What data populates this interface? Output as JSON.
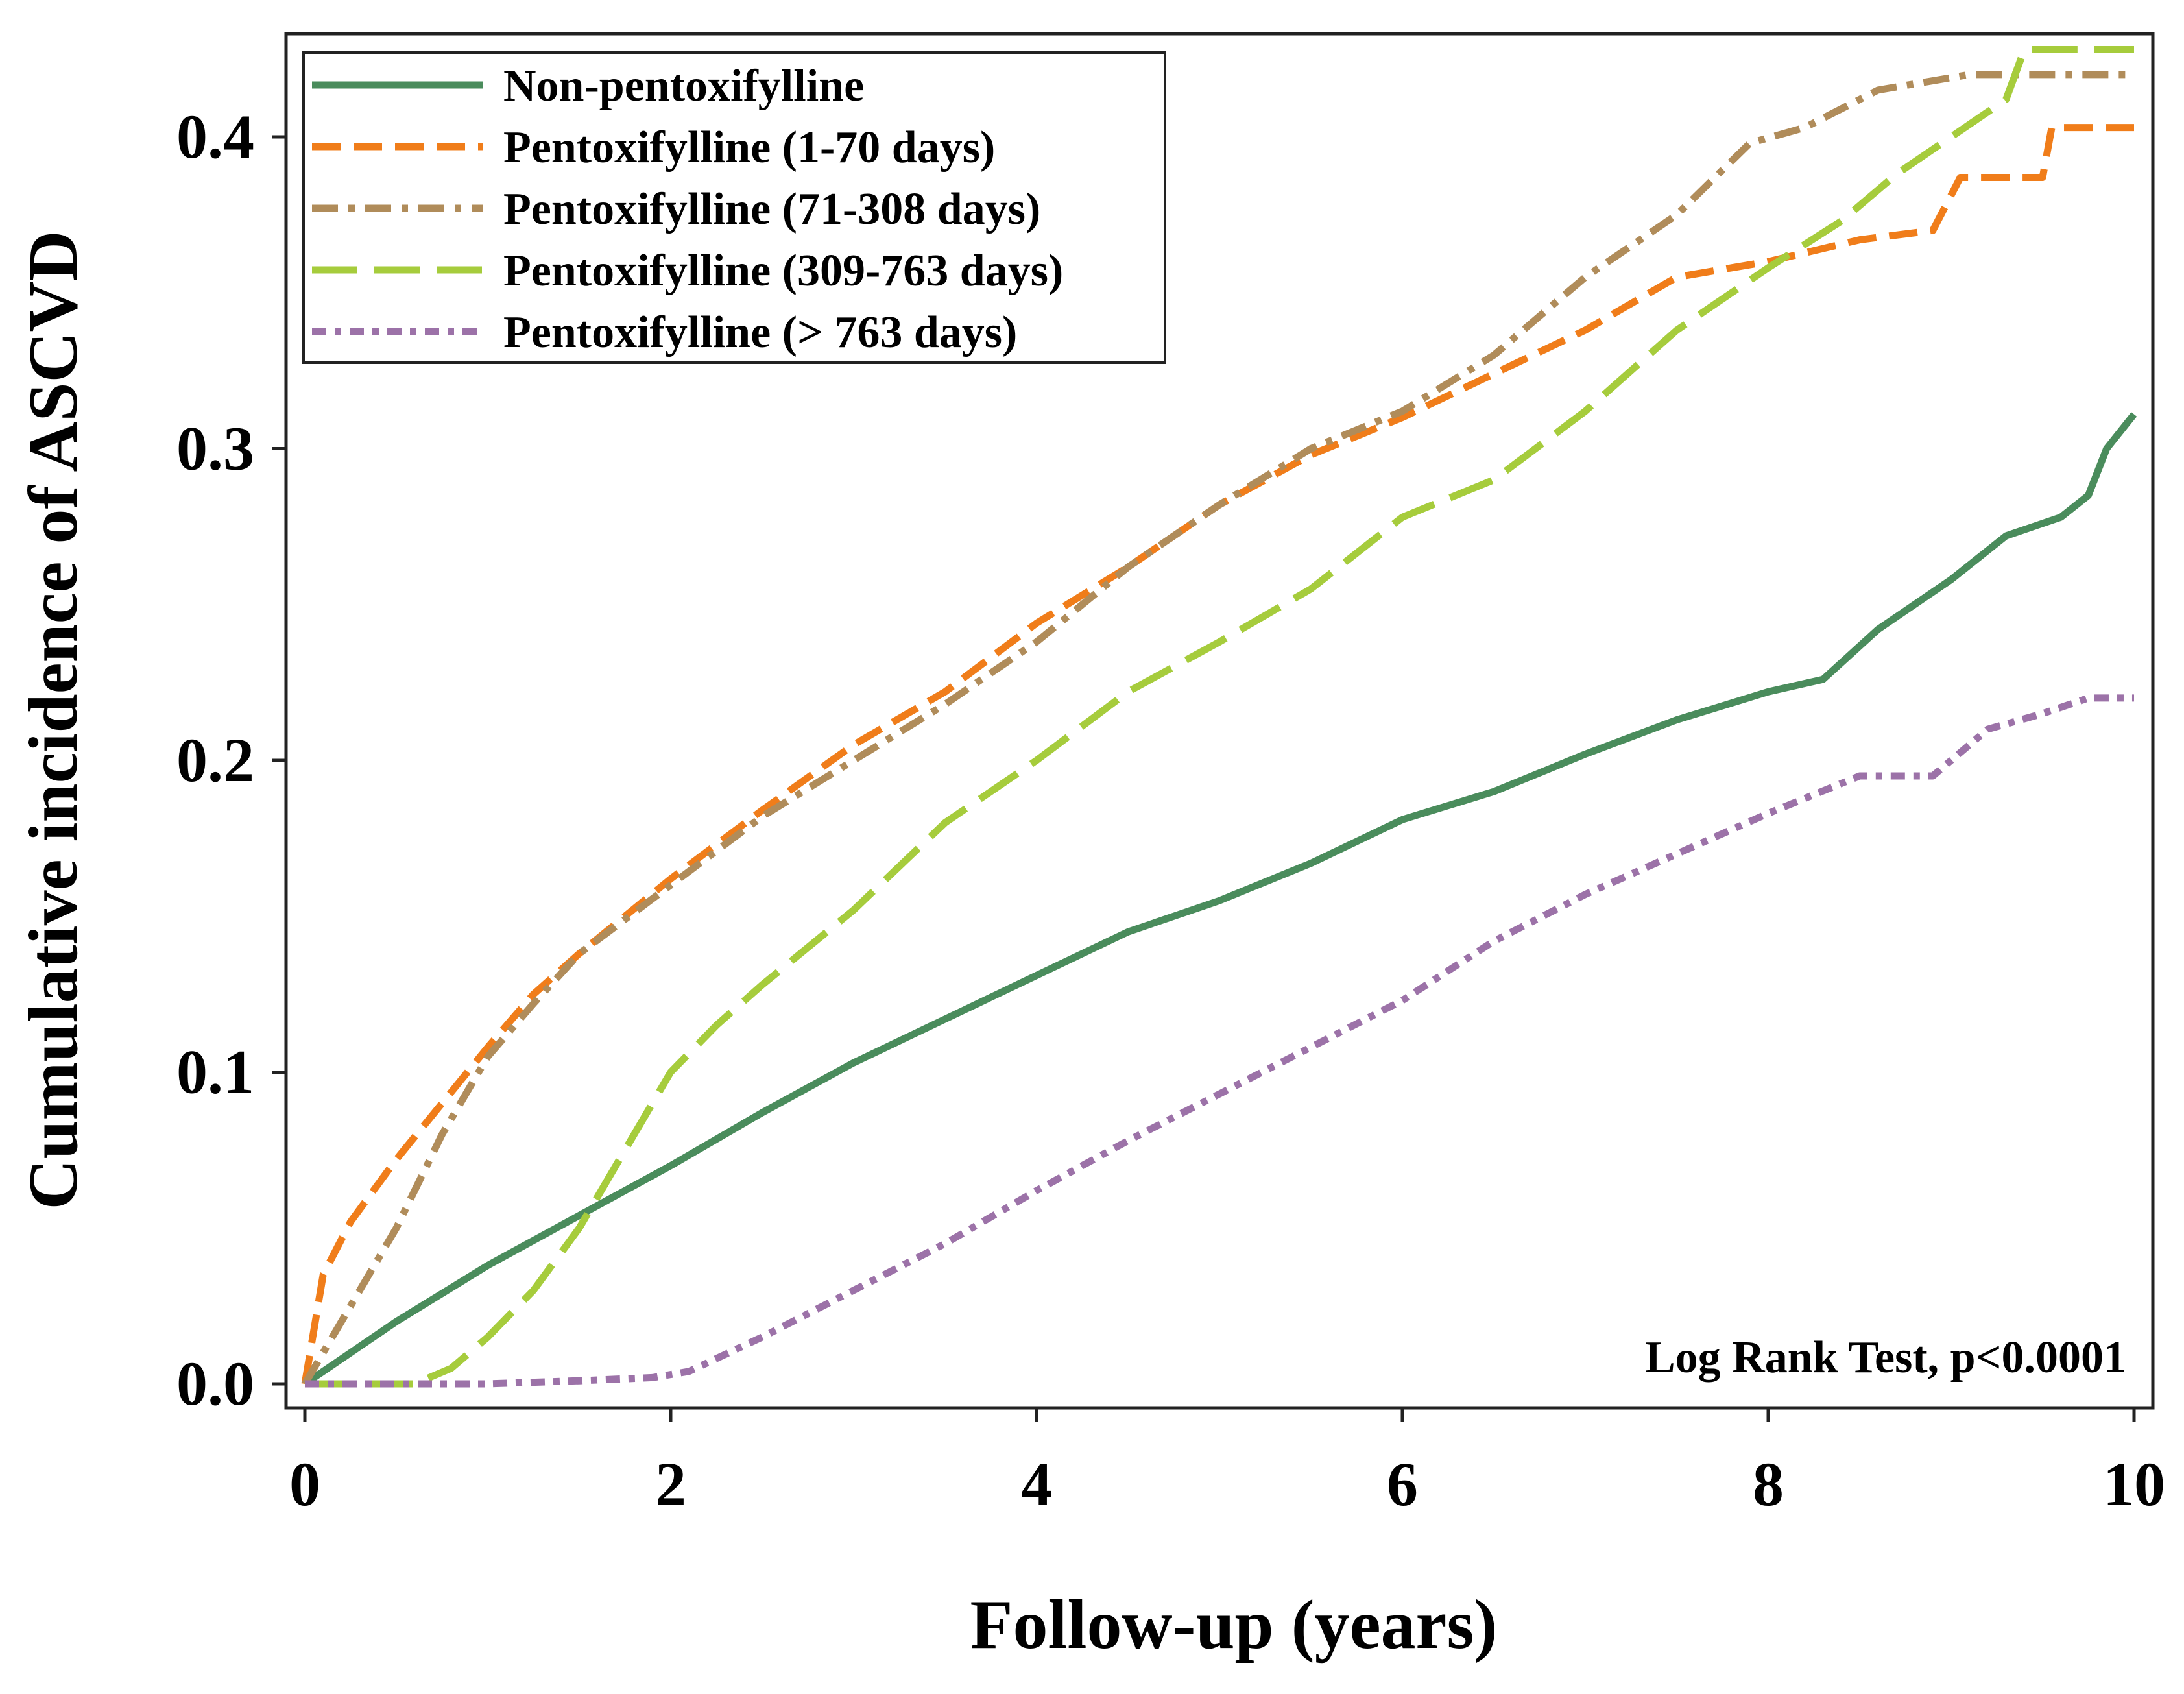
{
  "chart_data": {
    "type": "line",
    "title": "",
    "xlabel": "Follow-up (years)",
    "ylabel": "Cumulative incidence of ASCVD",
    "xlim": [
      0,
      10
    ],
    "ylim": [
      0,
      0.43
    ],
    "xticks": [
      0,
      2,
      4,
      6,
      8,
      10
    ],
    "xtick_labels": [
      "0",
      "2",
      "4",
      "6",
      "8",
      "10"
    ],
    "yticks": [
      0.0,
      0.1,
      0.2,
      0.3,
      0.4
    ],
    "ytick_labels": [
      "0.0",
      "0.1",
      "0.2",
      "0.3",
      "0.4"
    ],
    "grid": false,
    "legend_position": "top-left",
    "annotation": "Log Rank Test, p<0.0001",
    "series": [
      {
        "name": "Non-pentoxifylline",
        "color": "#4a8c5c",
        "style": "solid",
        "x": [
          0,
          0.5,
          1,
          1.5,
          2,
          2.5,
          3,
          3.5,
          4,
          4.5,
          5,
          5.5,
          6,
          6.5,
          7,
          7.5,
          8,
          8.3,
          8.6,
          9,
          9.3,
          9.6,
          9.75,
          9.85,
          10
        ],
        "y": [
          0,
          0.02,
          0.038,
          0.054,
          0.07,
          0.087,
          0.103,
          0.117,
          0.131,
          0.145,
          0.155,
          0.167,
          0.181,
          0.19,
          0.202,
          0.213,
          0.222,
          0.226,
          0.242,
          0.258,
          0.272,
          0.278,
          0.285,
          0.3,
          0.311
        ]
      },
      {
        "name": "Pentoxifylline (1-70 days)",
        "color": "#f07d1a",
        "style": "dashed",
        "x": [
          0,
          0.1,
          0.25,
          0.5,
          0.75,
          1,
          1.25,
          1.5,
          2,
          2.5,
          3,
          3.5,
          4,
          4.5,
          5,
          5.5,
          6,
          6.5,
          7,
          7.5,
          8,
          8.5,
          8.9,
          9.05,
          9.5,
          9.55,
          10
        ],
        "y": [
          0,
          0.035,
          0.052,
          0.072,
          0.09,
          0.108,
          0.125,
          0.138,
          0.162,
          0.184,
          0.205,
          0.222,
          0.244,
          0.262,
          0.282,
          0.298,
          0.31,
          0.324,
          0.338,
          0.355,
          0.36,
          0.367,
          0.37,
          0.387,
          0.387,
          0.403,
          0.403
        ]
      },
      {
        "name": "Pentoxifylline (71-308 days)",
        "color": "#b08c5a",
        "style": "dashdot",
        "x": [
          0,
          0.1,
          0.3,
          0.5,
          0.75,
          1,
          1.25,
          1.5,
          2,
          2.5,
          3,
          3.5,
          4,
          4.5,
          5,
          5.5,
          6,
          6.5,
          7,
          7.5,
          7.9,
          8.2,
          8.6,
          9.1,
          9.5,
          10
        ],
        "y": [
          0,
          0.01,
          0.03,
          0.05,
          0.08,
          0.105,
          0.122,
          0.138,
          0.16,
          0.182,
          0.2,
          0.218,
          0.238,
          0.262,
          0.282,
          0.3,
          0.312,
          0.33,
          0.355,
          0.375,
          0.398,
          0.403,
          0.415,
          0.42,
          0.42,
          0.42
        ]
      },
      {
        "name": "Pentoxifylline (309-763 days)",
        "color": "#a6cc3c",
        "style": "longdash",
        "x": [
          0,
          0.6,
          0.8,
          1.0,
          1.25,
          1.5,
          1.75,
          2,
          2.25,
          2.5,
          3,
          3.5,
          4,
          4.5,
          5,
          5.5,
          6,
          6.5,
          7,
          7.5,
          8,
          8.4,
          8.7,
          9.0,
          9.3,
          9.4,
          10
        ],
        "y": [
          0,
          0,
          0.005,
          0.015,
          0.03,
          0.05,
          0.075,
          0.1,
          0.115,
          0.128,
          0.152,
          0.18,
          0.2,
          0.222,
          0.238,
          0.255,
          0.278,
          0.29,
          0.312,
          0.338,
          0.358,
          0.373,
          0.388,
          0.4,
          0.412,
          0.428,
          0.428
        ]
      },
      {
        "name": "Pentoxifylline (> 763 days)",
        "color": "#9c72a8",
        "style": "shortdash",
        "x": [
          0,
          1,
          1.5,
          1.9,
          2.1,
          2.5,
          3,
          3.5,
          4,
          4.5,
          5,
          5.5,
          6,
          6.5,
          7,
          7.5,
          8,
          8.5,
          8.9,
          9.2,
          9.5,
          9.75,
          10
        ],
        "y": [
          0,
          0,
          0.001,
          0.002,
          0.004,
          0.015,
          0.03,
          0.045,
          0.062,
          0.078,
          0.093,
          0.108,
          0.123,
          0.142,
          0.157,
          0.17,
          0.183,
          0.195,
          0.195,
          0.21,
          0.215,
          0.22,
          0.22
        ]
      }
    ]
  }
}
